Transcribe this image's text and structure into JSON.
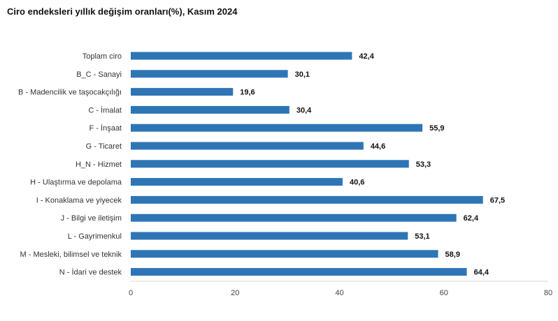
{
  "chart_data": {
    "type": "bar",
    "orientation": "horizontal",
    "title": "Ciro endeksleri yıllık değişim oranları(%), Kasım 2024",
    "categories": [
      "Toplam ciro",
      "B_C - Sanayi",
      "B - Madencilik ve taşocakçılığı",
      "C - İmalat",
      "F - İnşaat",
      "G - Ticaret",
      "H_N - Hizmet",
      "H - Ulaştırma ve depolama",
      "I - Konaklama ve yiyecek",
      "J - Bilgi ve iletişim",
      "L - Gayrimenkul",
      "M - Mesleki, bilimsel ve teknik",
      "N - İdari ve destek"
    ],
    "values": [
      42.4,
      30.1,
      19.6,
      30.4,
      55.9,
      44.6,
      53.3,
      40.6,
      67.5,
      62.4,
      53.1,
      58.9,
      64.4
    ],
    "value_labels": [
      "42,4",
      "30,1",
      "19,6",
      "30,4",
      "55,9",
      "44,6",
      "53,3",
      "40,6",
      "67,5",
      "62,4",
      "53,1",
      "58,9",
      "64,4"
    ],
    "xlim": [
      0,
      80
    ],
    "xticks": [
      0,
      20,
      40,
      60,
      80
    ],
    "xtick_labels": [
      "0",
      "20",
      "40",
      "60",
      "80"
    ],
    "bar_color": "#2e75b6",
    "grid": false,
    "legend": "none"
  }
}
